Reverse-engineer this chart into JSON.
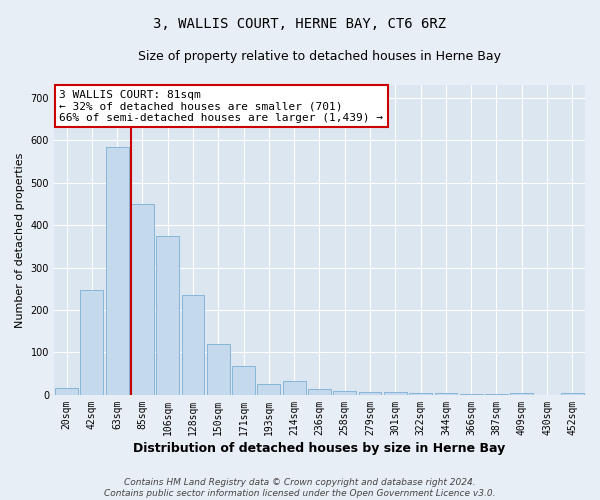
{
  "title": "3, WALLIS COURT, HERNE BAY, CT6 6RZ",
  "subtitle": "Size of property relative to detached houses in Herne Bay",
  "xlabel": "Distribution of detached houses by size in Herne Bay",
  "ylabel": "Number of detached properties",
  "categories": [
    "20sqm",
    "42sqm",
    "63sqm",
    "85sqm",
    "106sqm",
    "128sqm",
    "150sqm",
    "171sqm",
    "193sqm",
    "214sqm",
    "236sqm",
    "258sqm",
    "279sqm",
    "301sqm",
    "322sqm",
    "344sqm",
    "366sqm",
    "387sqm",
    "409sqm",
    "430sqm",
    "452sqm"
  ],
  "values": [
    17,
    247,
    585,
    450,
    375,
    235,
    120,
    68,
    25,
    32,
    14,
    10,
    8,
    8,
    5,
    5,
    3,
    2,
    5,
    1,
    5
  ],
  "bar_color": "#c5d9ed",
  "bar_edge_color": "#7bafd4",
  "vline_color": "#cc0000",
  "annotation_text": "3 WALLIS COURT: 81sqm\n← 32% of detached houses are smaller (701)\n66% of semi-detached houses are larger (1,439) →",
  "annotation_box_facecolor": "#ffffff",
  "annotation_box_edge": "#cc0000",
  "ylim": [
    0,
    730
  ],
  "yticks": [
    0,
    100,
    200,
    300,
    400,
    500,
    600,
    700
  ],
  "fig_bg_color": "#e8eef5",
  "plot_bg_color": "#dce6f1",
  "footer_line1": "Contains HM Land Registry data © Crown copyright and database right 2024.",
  "footer_line2": "Contains public sector information licensed under the Open Government Licence v3.0.",
  "title_fontsize": 10,
  "subtitle_fontsize": 9,
  "xlabel_fontsize": 9,
  "ylabel_fontsize": 8,
  "tick_fontsize": 7,
  "annotation_fontsize": 8,
  "footer_fontsize": 6.5
}
